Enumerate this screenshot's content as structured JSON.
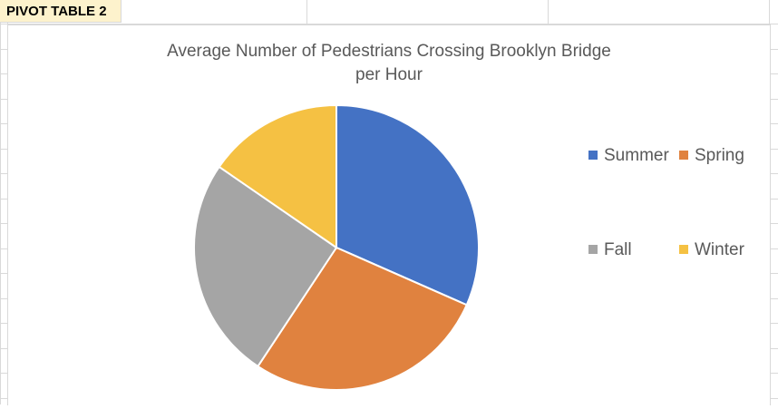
{
  "sheet": {
    "pivot_label": "PIVOT TABLE 2"
  },
  "chart_data": {
    "type": "pie",
    "title_line1": "Average Number of Pedestrians Crossing Brooklyn Bridge",
    "title_line2": "per Hour",
    "title": "Average Number of Pedestrians Crossing Brooklyn Bridge per Hour",
    "categories": [
      "Summer",
      "Spring",
      "Fall",
      "Winter"
    ],
    "values": [
      31.6,
      27.7,
      25.3,
      15.4
    ],
    "colors": [
      "#4472c4",
      "#e0823f",
      "#a5a5a5",
      "#f5c143"
    ],
    "legend_placement": "right"
  }
}
